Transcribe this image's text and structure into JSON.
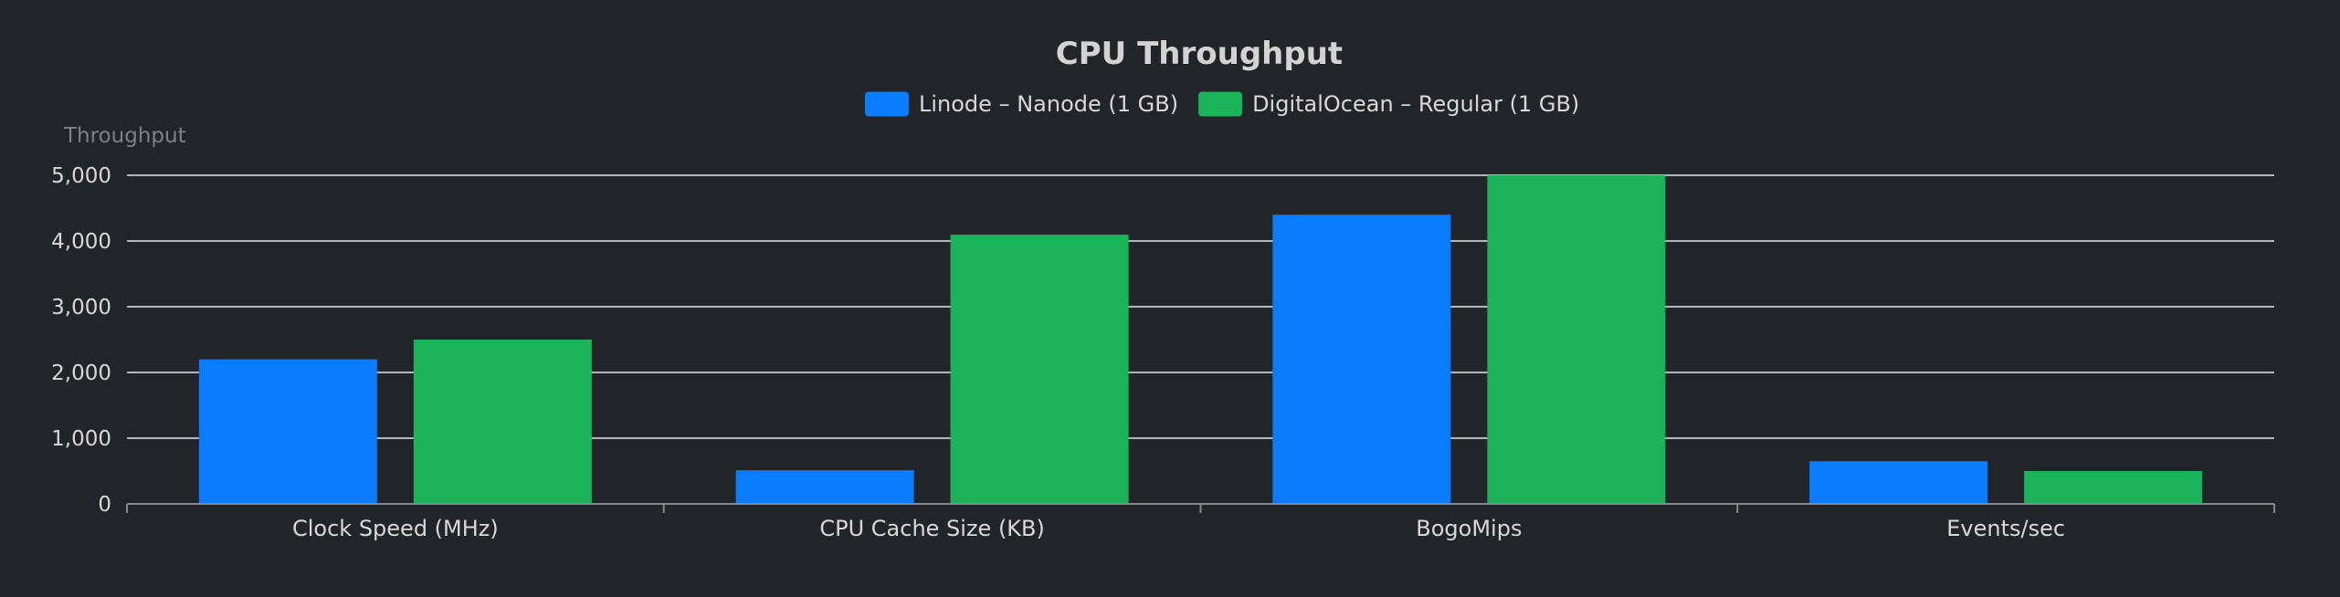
{
  "chart_data": {
    "type": "bar",
    "title": "CPU Throughput",
    "ylabel": "Throughput",
    "xlabel": "",
    "categories": [
      "Clock Speed (MHz)",
      "CPU Cache Size (KB)",
      "BogoMips",
      "Events/sec"
    ],
    "series": [
      {
        "name": "Linode – Nanode (1 GB)",
        "color": "#0a7cff",
        "values": [
          2200,
          512,
          4400,
          650
        ]
      },
      {
        "name": "DigitalOcean – Regular (1 GB)",
        "color": "#1ab35a",
        "values": [
          2500,
          4096,
          5000,
          500
        ]
      }
    ],
    "ylim": [
      0,
      5000
    ],
    "yticks": [
      0,
      1000,
      2000,
      3000,
      4000,
      5000
    ],
    "ytick_labels": [
      "0",
      "1,000",
      "2,000",
      "3,000",
      "4,000",
      "5,000"
    ],
    "grid": true,
    "legend_position": "top-center"
  },
  "colors": {
    "background": "#212429",
    "gridline": "#e6e6e6",
    "axis": "#888888"
  }
}
